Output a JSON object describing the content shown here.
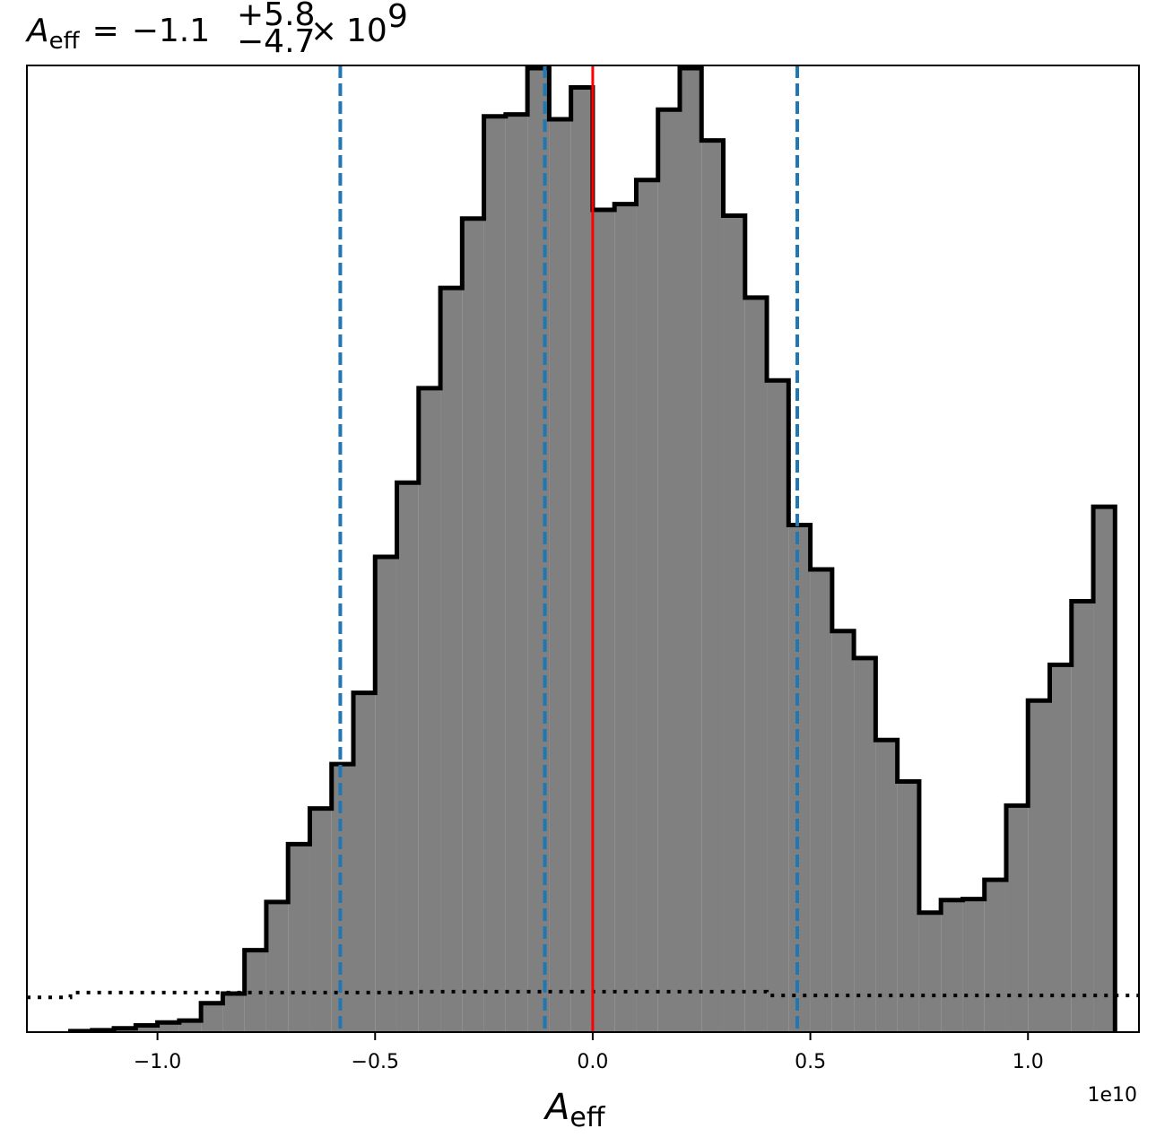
{
  "chart_data": {
    "type": "histogram",
    "title": {
      "lhs_symbol": "A",
      "lhs_subscript": "eff",
      "equals": "=",
      "median": "−1.1",
      "upper_err": "+5.8",
      "lower_err": "−4.7",
      "times": "×",
      "base": "10",
      "exponent": "9"
    },
    "xlabel": {
      "symbol": "A",
      "subscript": "eff"
    },
    "x_offset_label": "1e10",
    "xlim": [
      -13000000000.0,
      12550000000.0
    ],
    "ylim": [
      0,
      1.0
    ],
    "grid": false,
    "xticks": [
      -10000000000.0,
      -5000000000.0,
      0.0,
      5000000000.0,
      10000000000.0
    ],
    "xtick_labels": [
      "−1.0",
      "−0.5",
      "0.0",
      "0.5",
      "1.0"
    ],
    "bin_edges": [
      -12000000000.0,
      -11500000000.0,
      -11000000000.0,
      -10500000000.0,
      -10000000000.0,
      -9500000000.0,
      -9000000000.0,
      -8500000000.0,
      -8000000000.0,
      -7500000000.0,
      -7000000000.0,
      -6500000000.0,
      -6000000000.0,
      -5500000000.0,
      -5000000000.0,
      -4500000000.0,
      -4000000000.0,
      -3500000000.0,
      -3000000000.0,
      -2500000000.0,
      -2000000000.0,
      -1500000000.0,
      -1000000000.0,
      -500000000.0,
      0.0,
      500000000.0,
      1000000000.0,
      1500000000.0,
      2000000000.0,
      2500000000.0,
      3000000000.0,
      3500000000.0,
      4000000000.0,
      4500000000.0,
      5000000000.0,
      5500000000.0,
      6000000000.0,
      6500000000.0,
      7000000000.0,
      7500000000.0,
      8000000000.0,
      8500000000.0,
      9000000000.0,
      9500000000.0,
      10000000000.0,
      10500000000.0,
      11000000000.0,
      11500000000.0,
      12000000000.0
    ],
    "counts": [
      0.001,
      0.002,
      0.004,
      0.007,
      0.01,
      0.012,
      0.03,
      0.04,
      0.085,
      0.135,
      0.195,
      0.232,
      0.278,
      0.352,
      0.493,
      0.57,
      0.668,
      0.772,
      0.844,
      0.95,
      0.952,
      1.0,
      0.947,
      0.98,
      0.853,
      0.859,
      0.884,
      0.957,
      1.0,
      0.925,
      0.847,
      0.762,
      0.676,
      0.526,
      0.48,
      0.416,
      0.388,
      0.303,
      0.26,
      0.124,
      0.137,
      0.138,
      0.158,
      0.235,
      0.344,
      0.381,
      0.447,
      0.545
    ],
    "prior": {
      "style": "dotted",
      "color": "#000000",
      "points": [
        [
          -13000000000.0,
          0.036
        ],
        [
          -12000000000.0,
          0.036
        ],
        [
          -12000000000.0,
          0.041
        ],
        [
          -4000000000.0,
          0.041
        ],
        [
          -4000000000.0,
          0.042
        ],
        [
          4000000000.0,
          0.042
        ],
        [
          4000000000.0,
          0.038
        ],
        [
          12550000000.0,
          0.038
        ]
      ]
    },
    "quantile_lines": {
      "color": "#1f77b4",
      "style": "dashed",
      "values": [
        -5800000000.0,
        -1100000000.0,
        4700000000.0
      ]
    },
    "truth_line": {
      "color": "#ff0000",
      "value": 0.0
    },
    "hist_fill": "#808080",
    "hist_edge": "#000000"
  }
}
